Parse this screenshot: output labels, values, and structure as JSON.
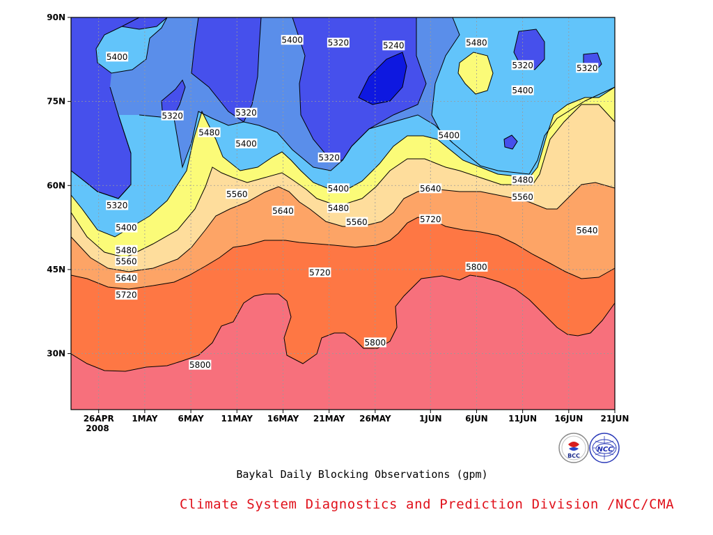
{
  "chart_data": {
    "type": "contour",
    "title": "",
    "caption": "Baykal Daily Blocking Observations (gpm)",
    "credit": "Climate System Diagnostics and Prediction Division /NCC/CMA",
    "year_label": "2008",
    "x_ticks": [
      "26APR",
      "1MAY",
      "6MAY",
      "11MAY",
      "16MAY",
      "21MAY",
      "26MAY",
      "1JUN",
      "6JUN",
      "11JUN",
      "16JUN",
      "21JUN"
    ],
    "y_ticks": [
      "30N",
      "45N",
      "60N",
      "75N",
      "90N"
    ],
    "x_range": [
      "23APR",
      "21JUN"
    ],
    "y_range": [
      20,
      90
    ],
    "contour_levels": [
      5240,
      5320,
      5400,
      5480,
      5560,
      5640,
      5720,
      5800
    ],
    "contour_labels": [
      {
        "text": "5400",
        "date": "28APR",
        "lat": 83
      },
      {
        "text": "5400",
        "date": "17MAY",
        "lat": 86
      },
      {
        "text": "5320",
        "date": "22MAY",
        "lat": 85.5
      },
      {
        "text": "5240",
        "date": "28MAY",
        "lat": 85
      },
      {
        "text": "5480",
        "date": "6JUN",
        "lat": 85.5
      },
      {
        "text": "5320",
        "date": "11JUN",
        "lat": 81.5
      },
      {
        "text": "5320",
        "date": "18JUN",
        "lat": 81
      },
      {
        "text": "5400",
        "date": "11JUN",
        "lat": 77
      },
      {
        "text": "5320",
        "date": "4MAY",
        "lat": 72.5
      },
      {
        "text": "5320",
        "date": "12MAY",
        "lat": 73
      },
      {
        "text": "5480",
        "date": "8MAY",
        "lat": 69.5
      },
      {
        "text": "5400",
        "date": "12MAY",
        "lat": 67.5
      },
      {
        "text": "5400",
        "date": "3JUN",
        "lat": 69
      },
      {
        "text": "5320",
        "date": "21MAY",
        "lat": 65
      },
      {
        "text": "5400",
        "date": "22MAY",
        "lat": 59.5
      },
      {
        "text": "5480",
        "date": "11JUN",
        "lat": 61
      },
      {
        "text": "5640",
        "date": "1JUN",
        "lat": 59.5
      },
      {
        "text": "5560",
        "date": "11MAY",
        "lat": 58.5
      },
      {
        "text": "5320",
        "date": "28APR",
        "lat": 56.5
      },
      {
        "text": "5480",
        "date": "22MAY",
        "lat": 56
      },
      {
        "text": "5560",
        "date": "11JUN",
        "lat": 58
      },
      {
        "text": "5640",
        "date": "16MAY",
        "lat": 55.5
      },
      {
        "text": "5560",
        "date": "24MAY",
        "lat": 53.5
      },
      {
        "text": "5720",
        "date": "1JUN",
        "lat": 54
      },
      {
        "text": "5400",
        "date": "29APR",
        "lat": 52.5
      },
      {
        "text": "5640",
        "date": "18JUN",
        "lat": 52
      },
      {
        "text": "5480",
        "date": "29APR",
        "lat": 48.5
      },
      {
        "text": "5560",
        "date": "29APR",
        "lat": 46.5
      },
      {
        "text": "5800",
        "date": "6JUN",
        "lat": 45.5
      },
      {
        "text": "5720",
        "date": "20MAY",
        "lat": 44.5
      },
      {
        "text": "5640",
        "date": "29APR",
        "lat": 43.5
      },
      {
        "text": "5720",
        "date": "29APR",
        "lat": 40.5
      },
      {
        "text": "5800",
        "date": "26MAY",
        "lat": 32
      },
      {
        "text": "5800",
        "date": "7MAY",
        "lat": 28
      }
    ],
    "colors": {
      "lt5240": "#0e18e0",
      "5240_5320": "#4650ec",
      "5320_5400": "#5a8eea",
      "5400_5480": "#62c4fa",
      "5480_5560": "#fbfb78",
      "5560_5640": "#fedd9c",
      "5640_5720": "#fda466",
      "5720_5800": "#fe7744",
      "ge5800": "#f7707c"
    },
    "grid": "dotted"
  },
  "logos": {
    "bcc": {
      "icon": "bcc-logo-icon",
      "text": "BCC"
    },
    "ncc": {
      "icon": "ncc-logo-icon",
      "text": "NCC"
    }
  }
}
